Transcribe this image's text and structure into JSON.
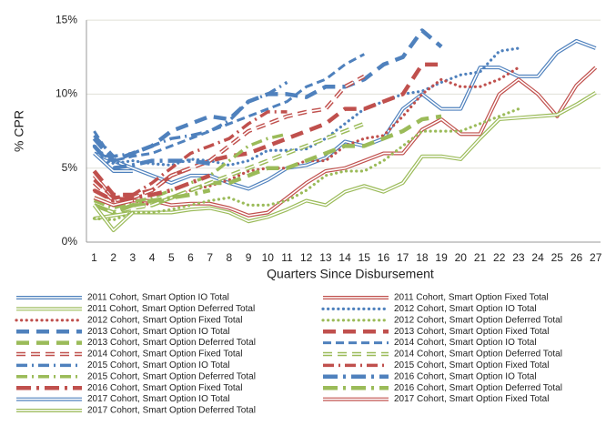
{
  "chart_data": {
    "type": "line",
    "y_label": "% CPR",
    "x_label": "Quarters Since Disbursement",
    "x": [
      1,
      2,
      3,
      4,
      5,
      6,
      7,
      8,
      9,
      10,
      11,
      12,
      13,
      14,
      15,
      16,
      17,
      18,
      19,
      20,
      21,
      22,
      23,
      24,
      25,
      26,
      27
    ],
    "xlim": [
      0.6,
      27.25
    ],
    "ylim": [
      0,
      15.5
    ],
    "yticks": [
      {
        "value": 0,
        "label": "0%"
      },
      {
        "value": 5,
        "label": "5%"
      },
      {
        "value": 10,
        "label": "10%"
      },
      {
        "value": 15,
        "label": "15%"
      }
    ],
    "grid": true,
    "series": [
      {
        "name": "2011 Cohort, Smart Option IO Total",
        "color": "#4f81bd",
        "style": "double",
        "values": [
          6.0,
          5.5,
          5.0,
          4.5,
          4.0,
          4.5,
          4.5,
          4.0,
          3.6,
          4.2,
          5.0,
          5.2,
          5.7,
          6.8,
          6.5,
          7.0,
          9.0,
          10.0,
          9.0,
          9.0,
          11.8,
          11.8,
          11.2,
          11.2,
          12.8,
          13.6,
          13.1
        ]
      },
      {
        "name": "2011 Cohort, Smart Option Fixed Total",
        "color": "#c0504d",
        "style": "double",
        "values": [
          4.5,
          3.0,
          2.8,
          2.8,
          2.5,
          2.6,
          2.6,
          2.3,
          1.8,
          2.0,
          3.0,
          4.0,
          4.8,
          5.0,
          5.5,
          6.0,
          6.0,
          7.6,
          8.3,
          7.3,
          7.3,
          10.0,
          11.0,
          10.0,
          8.5,
          10.6,
          11.8
        ]
      },
      {
        "name": "2011 Cohort, Smart Option Deferred Total",
        "color": "#9bbb59",
        "style": "double",
        "values": [
          1.6,
          1.8,
          2.0,
          2.0,
          2.0,
          2.2,
          2.3,
          2.0,
          1.4,
          1.7,
          2.2,
          2.8,
          2.5,
          3.4,
          3.8,
          3.4,
          4.0,
          5.8,
          5.8,
          5.6,
          7.0,
          8.3,
          8.4,
          8.5,
          8.6,
          9.3,
          10.1
        ]
      },
      {
        "name": "2012 Cohort, Smart Option IO Total",
        "color": "#4f81bd",
        "style": "dotted",
        "values": [
          6.5,
          5.3,
          5.5,
          5.3,
          5.2,
          5.6,
          5.5,
          5.2,
          5.5,
          6.2,
          6.2,
          6.3,
          7.0,
          8.0,
          9.0,
          9.5,
          10.0,
          10.2,
          10.8,
          11.3,
          11.5,
          12.9,
          13.1,
          null,
          null,
          null,
          null
        ]
      },
      {
        "name": "2012 Cohort, Smart Option Fixed Total",
        "color": "#c0504d",
        "style": "dotted",
        "values": [
          3.5,
          2.8,
          2.8,
          2.5,
          3.0,
          3.5,
          3.8,
          4.2,
          4.8,
          5.0,
          5.0,
          5.5,
          5.5,
          6.5,
          7.0,
          7.2,
          8.5,
          10.0,
          11.0,
          10.5,
          10.5,
          11.0,
          11.8,
          null,
          null,
          null,
          null
        ]
      },
      {
        "name": "2012 Cohort, Smart Option Deferred Total",
        "color": "#9bbb59",
        "style": "dotted",
        "values": [
          1.6,
          1.5,
          2.0,
          2.0,
          2.2,
          2.5,
          2.8,
          3.0,
          2.5,
          2.5,
          2.8,
          3.5,
          4.5,
          4.8,
          4.8,
          5.5,
          6.5,
          7.5,
          7.5,
          7.5,
          8.0,
          8.5,
          9.0,
          null,
          null,
          null,
          null
        ]
      },
      {
        "name": "2013 Cohort, Smart Option IO Total",
        "color": "#4f81bd",
        "style": "longdash",
        "values": [
          7.0,
          5.5,
          6.0,
          6.5,
          7.5,
          8.0,
          8.5,
          8.3,
          9.5,
          10.0,
          10.0,
          9.8,
          10.5,
          10.5,
          11.0,
          12.0,
          12.5,
          14.3,
          13.2,
          null,
          null,
          null,
          null,
          null,
          null,
          null,
          null
        ]
      },
      {
        "name": "2013 Cohort, Smart Option Fixed Total",
        "color": "#c0504d",
        "style": "longdash",
        "values": [
          4.8,
          3.2,
          3.2,
          3.5,
          4.5,
          5.0,
          5.5,
          5.8,
          6.0,
          6.5,
          7.0,
          7.5,
          8.0,
          9.0,
          9.0,
          9.5,
          10.0,
          12.0,
          12.0,
          null,
          null,
          null,
          null,
          null,
          null,
          null,
          null
        ]
      },
      {
        "name": "2013 Cohort, Smart Option Deferred Total",
        "color": "#9bbb59",
        "style": "longdash",
        "values": [
          3.0,
          2.5,
          2.5,
          2.5,
          3.0,
          3.5,
          4.0,
          4.0,
          4.5,
          5.0,
          5.0,
          5.5,
          6.0,
          6.5,
          6.5,
          7.0,
          7.5,
          8.3,
          8.5,
          null,
          null,
          null,
          null,
          null,
          null,
          null,
          null
        ]
      },
      {
        "name": "2014 Cohort, Smart Option IO Total",
        "color": "#4f81bd",
        "style": "dash",
        "values": [
          7.5,
          5.5,
          5.8,
          6.0,
          6.5,
          7.0,
          7.5,
          8.0,
          8.5,
          9.0,
          9.5,
          10.5,
          11.0,
          12.0,
          12.7,
          null,
          null,
          null,
          null,
          null,
          null,
          null,
          null,
          null,
          null,
          null,
          null
        ]
      },
      {
        "name": "2014 Cohort, Smart Option Fixed Total",
        "color": "#c0504d",
        "style": "doubledash",
        "values": [
          4.0,
          2.8,
          3.0,
          3.5,
          4.5,
          5.0,
          5.5,
          6.5,
          7.5,
          8.0,
          8.5,
          8.8,
          9.0,
          10.5,
          11.2,
          null,
          null,
          null,
          null,
          null,
          null,
          null,
          null,
          null,
          null,
          null,
          null
        ]
      },
      {
        "name": "2014 Cohort, Smart Option Deferred Total",
        "color": "#9bbb59",
        "style": "doubledash",
        "values": [
          2.5,
          2.0,
          2.3,
          2.5,
          3.0,
          3.5,
          4.0,
          4.5,
          5.0,
          5.5,
          6.0,
          6.5,
          7.0,
          7.5,
          8.0,
          null,
          null,
          null,
          null,
          null,
          null,
          null,
          null,
          null,
          null,
          null,
          null
        ]
      },
      {
        "name": "2015 Cohort, Smart Option IO Total",
        "color": "#4f81bd",
        "style": "dashdot",
        "values": [
          7.2,
          5.8,
          6.0,
          6.5,
          7.0,
          7.2,
          7.5,
          8.2,
          9.5,
          10.0,
          10.8,
          null,
          null,
          null,
          null,
          null,
          null,
          null,
          null,
          null,
          null,
          null,
          null,
          null,
          null,
          null,
          null
        ]
      },
      {
        "name": "2015 Cohort, Smart Option Fixed Total",
        "color": "#c0504d",
        "style": "dashdot",
        "values": [
          4.2,
          3.0,
          3.2,
          4.0,
          5.0,
          6.0,
          6.5,
          7.0,
          8.0,
          8.8,
          8.8,
          null,
          null,
          null,
          null,
          null,
          null,
          null,
          null,
          null,
          null,
          null,
          null,
          null,
          null,
          null,
          null
        ]
      },
      {
        "name": "2015 Cohort, Smart Option Deferred Total",
        "color": "#9bbb59",
        "style": "dashdot",
        "values": [
          2.8,
          2.3,
          2.7,
          3.0,
          3.5,
          4.0,
          4.5,
          5.5,
          6.5,
          7.0,
          7.3,
          null,
          null,
          null,
          null,
          null,
          null,
          null,
          null,
          null,
          null,
          null,
          null,
          null,
          null,
          null,
          null
        ]
      },
      {
        "name": "2016 Cohort, Smart Option IO Total",
        "color": "#4f81bd",
        "style": "longdashdot",
        "values": [
          6.5,
          5.0,
          5.2,
          5.5,
          5.5,
          5.5,
          5.3,
          null,
          null,
          null,
          null,
          null,
          null,
          null,
          null,
          null,
          null,
          null,
          null,
          null,
          null,
          null,
          null,
          null,
          null,
          null,
          null
        ]
      },
      {
        "name": "2016 Cohort, Smart Option Fixed Total",
        "color": "#c0504d",
        "style": "longdashdot",
        "values": [
          3.5,
          2.8,
          3.0,
          3.2,
          3.5,
          4.0,
          4.5,
          null,
          null,
          null,
          null,
          null,
          null,
          null,
          null,
          null,
          null,
          null,
          null,
          null,
          null,
          null,
          null,
          null,
          null,
          null,
          null
        ]
      },
      {
        "name": "2016 Cohort, Smart Option Deferred Total",
        "color": "#9bbb59",
        "style": "longdashdot",
        "values": [
          2.5,
          2.0,
          2.5,
          2.8,
          3.0,
          3.2,
          3.5,
          null,
          null,
          null,
          null,
          null,
          null,
          null,
          null,
          null,
          null,
          null,
          null,
          null,
          null,
          null,
          null,
          null,
          null,
          null,
          null
        ]
      },
      {
        "name": "2017 Cohort, Smart Option IO Total",
        "color": "#4f81bd",
        "style": "double",
        "values": [
          6.0,
          4.8,
          4.8,
          null,
          null,
          null,
          null,
          null,
          null,
          null,
          null,
          null,
          null,
          null,
          null,
          null,
          null,
          null,
          null,
          null,
          null,
          null,
          null,
          null,
          null,
          null,
          null
        ]
      },
      {
        "name": "2017 Cohort, Smart Option Fixed Total",
        "color": "#c0504d",
        "style": "double",
        "values": [
          3.0,
          2.5,
          2.8,
          null,
          null,
          null,
          null,
          null,
          null,
          null,
          null,
          null,
          null,
          null,
          null,
          null,
          null,
          null,
          null,
          null,
          null,
          null,
          null,
          null,
          null,
          null,
          null
        ]
      },
      {
        "name": "2017 Cohort, Smart Option Deferred Total",
        "color": "#9bbb59",
        "style": "double",
        "values": [
          2.5,
          0.8,
          2.0,
          null,
          null,
          null,
          null,
          null,
          null,
          null,
          null,
          null,
          null,
          null,
          null,
          null,
          null,
          null,
          null,
          null,
          null,
          null,
          null,
          null,
          null,
          null,
          null
        ]
      }
    ]
  }
}
